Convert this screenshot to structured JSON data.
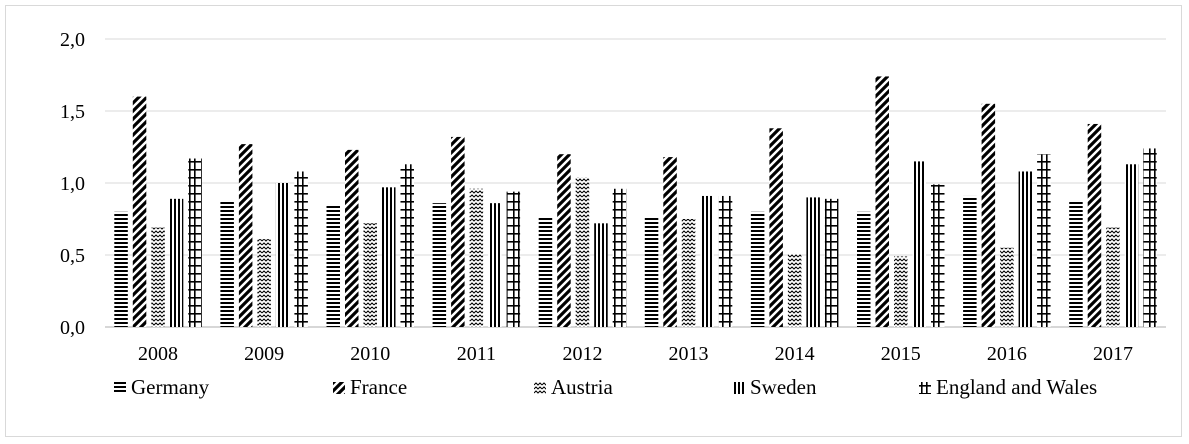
{
  "chart_data": {
    "type": "bar",
    "title": "",
    "xlabel": "",
    "ylabel": "",
    "categories": [
      "2008",
      "2009",
      "2010",
      "2011",
      "2012",
      "2013",
      "2014",
      "2015",
      "2016",
      "2017"
    ],
    "ylim": [
      0,
      2.0
    ],
    "yticks": [
      "0,0",
      "0,5",
      "1,0",
      "1,5",
      "2,0"
    ],
    "grid": "horizontal",
    "legend_position": "bottom",
    "series": [
      {
        "name": "Germany",
        "pattern": "horizontal-lines",
        "values": [
          0.8,
          0.88,
          0.85,
          0.86,
          0.76,
          0.76,
          0.8,
          0.8,
          0.91,
          0.88
        ]
      },
      {
        "name": "France",
        "pattern": "wide-diagonal",
        "values": [
          1.6,
          1.27,
          1.23,
          1.32,
          1.2,
          1.18,
          1.38,
          1.74,
          1.55,
          1.41
        ]
      },
      {
        "name": "Austria",
        "pattern": "zigzag",
        "values": [
          0.69,
          0.61,
          0.72,
          0.96,
          1.04,
          0.75,
          0.51,
          0.49,
          0.55,
          0.69
        ]
      },
      {
        "name": "Sweden",
        "pattern": "vertical-lines",
        "values": [
          0.89,
          1.0,
          0.97,
          0.86,
          0.72,
          0.91,
          0.9,
          1.15,
          1.08,
          1.13
        ]
      },
      {
        "name": "England and Wales",
        "pattern": "cross-grid",
        "values": [
          1.17,
          1.08,
          1.13,
          0.94,
          0.96,
          0.91,
          0.89,
          0.99,
          1.2,
          1.24
        ]
      }
    ],
    "colors": {
      "bars": "#000000",
      "grid": "#d9d9d9",
      "axis": "#bfbfbf"
    }
  }
}
